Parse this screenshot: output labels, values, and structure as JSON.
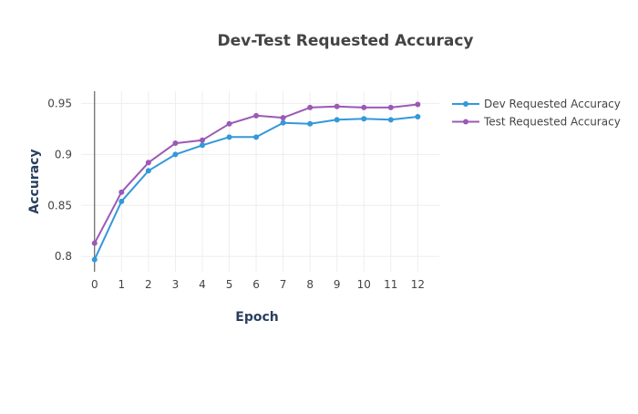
{
  "chart_data": {
    "type": "line",
    "title": "Dev-Test Requested Accuracy",
    "xlabel": "Epoch",
    "ylabel": "Accuracy",
    "x": [
      0,
      1,
      2,
      3,
      4,
      5,
      6,
      7,
      8,
      9,
      10,
      11,
      12
    ],
    "xlim": [
      -0.5,
      12.8
    ],
    "ylim": [
      0.785,
      0.962
    ],
    "x_ticks": [
      0,
      1,
      2,
      3,
      4,
      5,
      6,
      7,
      8,
      9,
      10,
      11,
      12
    ],
    "y_ticks": [
      0.8,
      0.85,
      0.9,
      0.95
    ],
    "y_tick_labels": [
      "0.8",
      "0.85",
      "0.9",
      "0.95"
    ],
    "grid": true,
    "legend_position": "top-right",
    "series": [
      {
        "name": "Dev Requested Accuracy",
        "color": "#3498db",
        "values": [
          0.797,
          0.854,
          0.884,
          0.9,
          0.909,
          0.917,
          0.917,
          0.931,
          0.93,
          0.934,
          0.935,
          0.934,
          0.937
        ]
      },
      {
        "name": "Test Requested Accuracy",
        "color": "#9b59b6",
        "values": [
          0.813,
          0.863,
          0.892,
          0.911,
          0.914,
          0.93,
          0.938,
          0.936,
          0.946,
          0.947,
          0.946,
          0.946,
          0.949
        ]
      }
    ]
  }
}
